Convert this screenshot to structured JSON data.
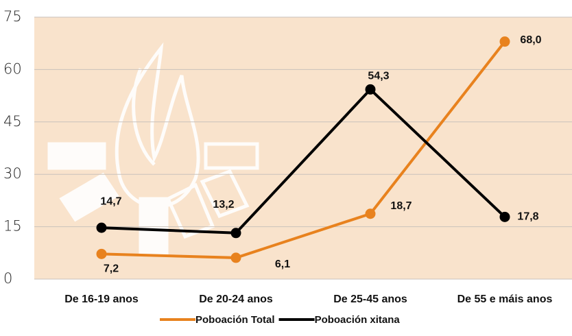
{
  "chart_data": {
    "type": "line",
    "categories": [
      "De 16-19 anos",
      "De 20-24 anos",
      "De 25-45 anos",
      "De 55 e máis anos"
    ],
    "series": [
      {
        "name": "Poboación Total",
        "color": "#e8821e",
        "values": [
          7.2,
          6.1,
          18.7,
          68.0
        ],
        "value_labels": [
          "7,2",
          "6,1",
          "18,7",
          "68,0"
        ]
      },
      {
        "name": "Poboación xitana",
        "color": "#000000",
        "values": [
          14.7,
          13.2,
          54.3,
          17.8
        ],
        "value_labels": [
          "14,7",
          "13,2",
          "54,3",
          "17,8"
        ]
      }
    ],
    "ylim": [
      0,
      75
    ],
    "yticks": [
      0,
      15,
      30,
      45,
      60,
      75
    ],
    "grid": true,
    "legend": "bottom"
  }
}
